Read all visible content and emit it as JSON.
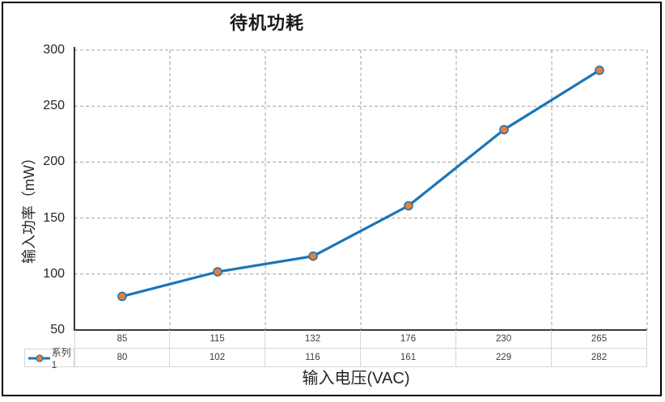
{
  "chart": {
    "colors": {
      "line": "#1b76b6",
      "marker_fill": "#ed7d31",
      "marker_stroke": "#1b76b6",
      "grid": "#a0a0a0",
      "axis": "#1f1f1f",
      "table_border": "#d6d6d6"
    }
  },
  "chart_data": {
    "type": "line",
    "title": "待机功耗",
    "xlabel": "输入电压(VAC)",
    "ylabel": "输入功率（mW）",
    "categories": [
      85,
      115,
      132,
      176,
      230,
      265
    ],
    "series": [
      {
        "name": "系列1",
        "values": [
          80,
          102,
          116,
          161,
          229,
          282
        ]
      }
    ],
    "ylim": [
      50,
      300
    ],
    "y_ticks": [
      300,
      250,
      200,
      150,
      100,
      50
    ],
    "grid": "dashed",
    "legend_position": "data-table-left",
    "data_table": true
  }
}
